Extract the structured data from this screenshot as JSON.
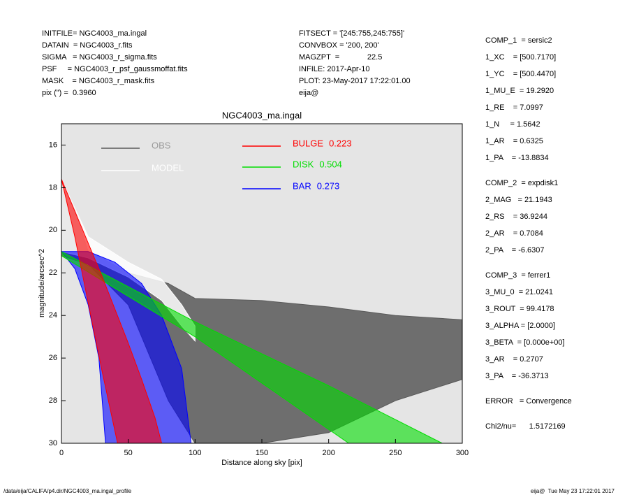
{
  "header": {
    "left": [
      "INITFILE= NGC4003_ma.ingal",
      "DATAIN  = NGC4003_r.fits",
      "SIGMA   = NGC4003_r_sigma.fits",
      "PSF     = NGC4003_r_psf_gaussmoffat.fits",
      "MASK    = NGC4003_r_mask.fits",
      "pix (\") =  0.3960"
    ],
    "middle": [
      "FITSECT = '[245:755,245:755]'",
      "CONVBOX = '200, 200'",
      "MAGZPT  =             22.5",
      "INFILE: 2017-Apr-10",
      "PLOT: 23-May-2017 17:22:01.00",
      "eija@"
    ]
  },
  "parameters": [
    [
      "COMP_1  = sersic2",
      "1_XC    = [500.7170]",
      "1_YC    = [500.4470]",
      "1_MU_E  = 19.2920",
      "1_RE    = 7.0997",
      "1_N     = 1.5642",
      "1_AR    = 0.6325",
      "1_PA    = -13.8834"
    ],
    [
      "COMP_2  = expdisk1",
      "2_MAG   = 21.1943",
      "2_RS    = 36.9244",
      "2_AR    = 0.7084",
      "2_PA    = -6.6307"
    ],
    [
      "COMP_3  = ferrer1",
      "3_MU_0  = 21.0241",
      "3_ROUT  = 99.4178",
      "3_ALPHA = [2.0000]",
      "3_BETA  = [0.000e+00]",
      "3_AR    = 0.2707",
      "3_PA    = -36.3713"
    ],
    [
      "ERROR   = Convergence"
    ],
    [
      "Chi2/nu=      1.5172169"
    ]
  ],
  "footer": {
    "left": "/data/eija/CALIFA/p4.dir/NGC4003_ma.ingal_profile",
    "right": "eija@  Tue May 23 17:22:01 2017"
  },
  "chart_data": {
    "type": "band",
    "title": "NGC4003_ma.ingal",
    "x_label": "Distance along sky [pix]",
    "y_label": "magnitude/arcsec^2",
    "xlim": [
      0,
      300
    ],
    "xticks": [
      0,
      50,
      100,
      150,
      200,
      250,
      300
    ],
    "ylim": [
      30,
      15
    ],
    "yticks": [
      16,
      18,
      20,
      22,
      24,
      26,
      28,
      30
    ],
    "series": [
      {
        "name": "OBS",
        "color": "#595959",
        "x": [
          0,
          10,
          15,
          20,
          30,
          50,
          80,
          100,
          150,
          200,
          250,
          300
        ],
        "values": [
          17.6,
          19,
          20,
          21,
          21.3,
          22,
          22.5,
          23.2,
          23.3,
          23.6,
          24,
          24.2
        ],
        "faint_x": [
          0,
          20,
          50,
          80,
          100,
          150,
          200,
          250,
          300
        ],
        "faint_values": [
          21.2,
          21.6,
          23.5,
          28,
          30,
          30,
          29.5,
          28,
          27
        ]
      },
      {
        "name": "MODEL",
        "color": "#ffffff",
        "x": [
          0,
          20,
          50,
          75,
          90,
          100
        ],
        "values": [
          17.6,
          20.3,
          21.5,
          22.3,
          23.5,
          24.5
        ],
        "faint_x": [
          0,
          20,
          50,
          75,
          90,
          100
        ],
        "faint_values": [
          21,
          21.3,
          22.2,
          23.3,
          24.5,
          25.2
        ]
      },
      {
        "name": "BAR",
        "fraction": 0.273,
        "color": "#0000ff",
        "x": [
          0,
          20,
          40,
          60,
          75,
          90,
          97
        ],
        "values": [
          21,
          21,
          21.5,
          22.5,
          24,
          26.5,
          30
        ],
        "faint_x": [
          0,
          10,
          20,
          28,
          33
        ],
        "faint_values": [
          21,
          21.8,
          23.5,
          26,
          30
        ]
      },
      {
        "name": "DISK",
        "fraction": 0.504,
        "color": "#00dd00",
        "x": [
          0,
          100,
          200,
          285
        ],
        "values": [
          21,
          24.3,
          27.3,
          30
        ],
        "faint_x": [
          0,
          100,
          215
        ],
        "faint_values": [
          21.2,
          25,
          30
        ]
      },
      {
        "name": "BULGE",
        "fraction": 0.223,
        "color": "#ff0000",
        "x": [
          0,
          10,
          20,
          30,
          40,
          50,
          60,
          70,
          75
        ],
        "values": [
          17.6,
          19.1,
          20.6,
          22.1,
          23.7,
          25.3,
          27,
          28.8,
          30
        ],
        "faint_x": [
          0,
          10,
          20,
          30,
          42
        ],
        "faint_values": [
          17.6,
          20.3,
          23.4,
          26.5,
          30
        ]
      }
    ]
  }
}
